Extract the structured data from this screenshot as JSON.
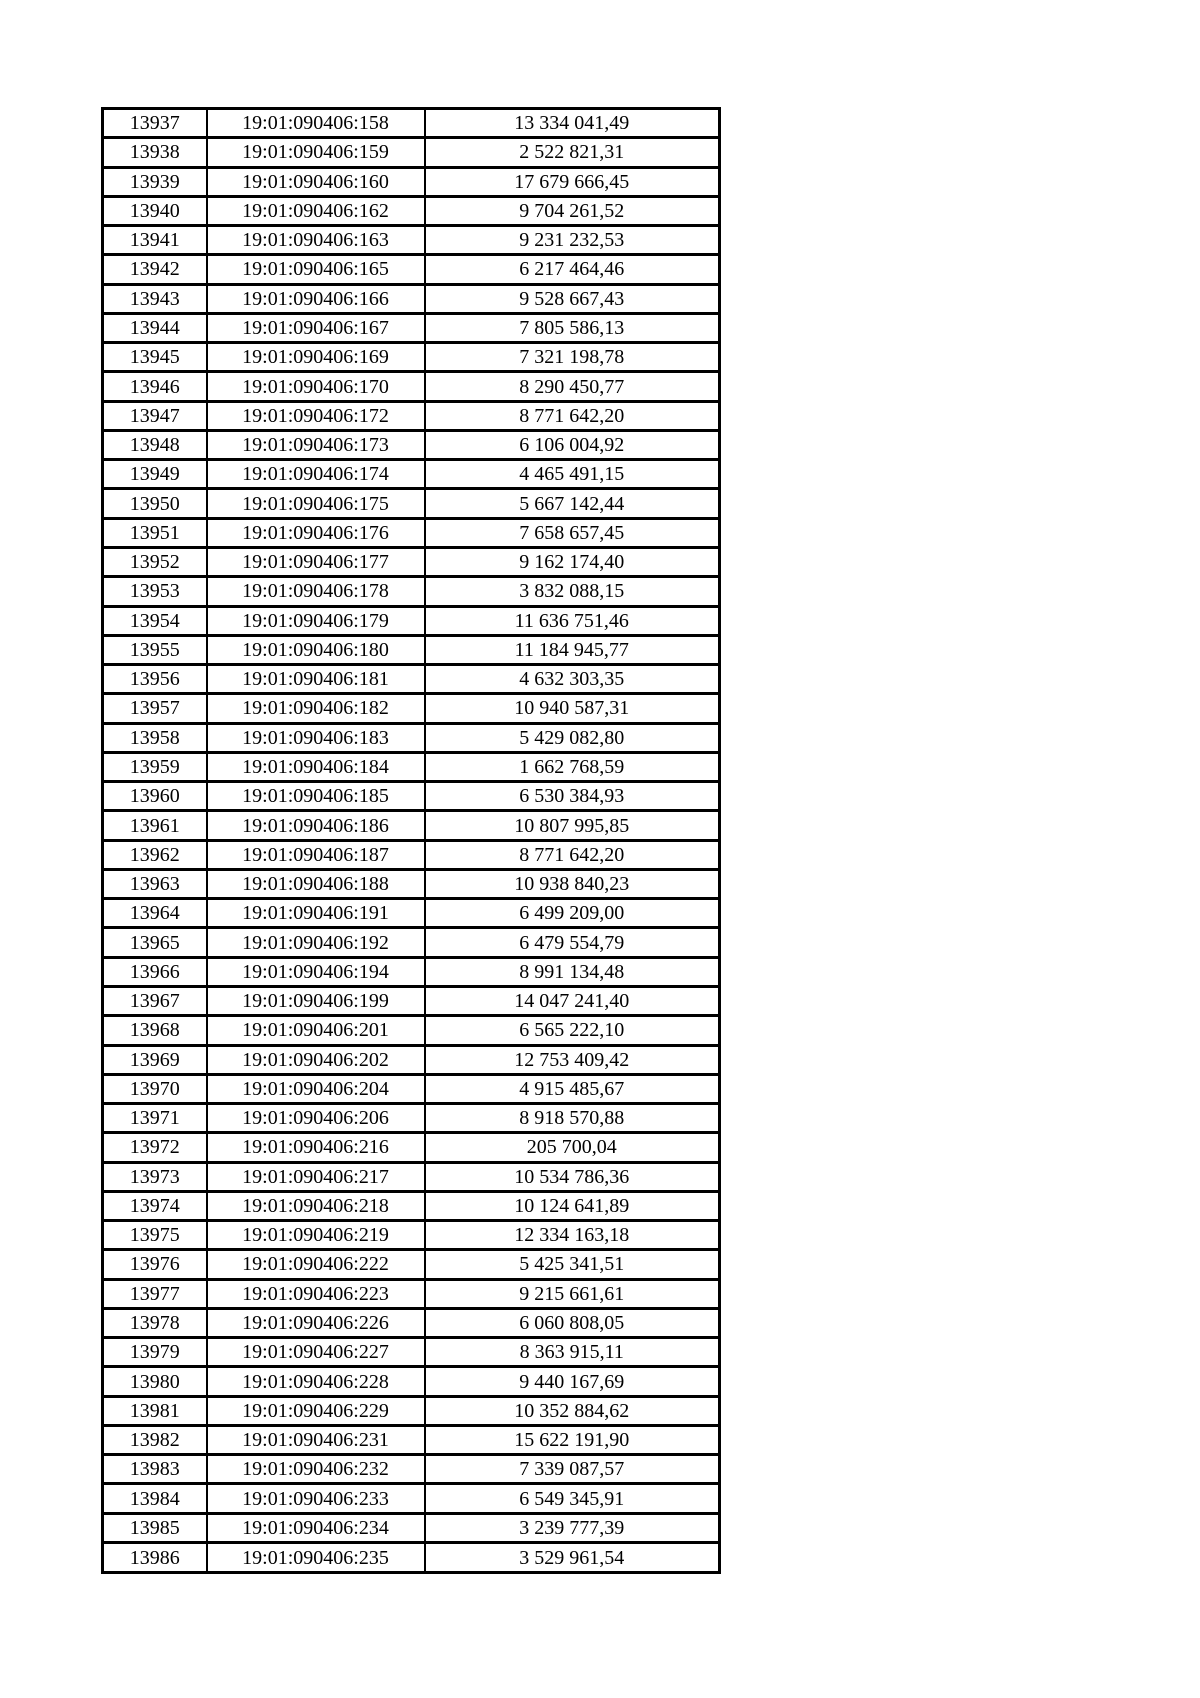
{
  "colors": {
    "background": "#ffffff",
    "text": "#000000",
    "border": "#000000"
  },
  "table": {
    "rows": [
      {
        "id": "13937",
        "time": "19:01:090406:158",
        "value": "13 334 041,49"
      },
      {
        "id": "13938",
        "time": "19:01:090406:159",
        "value": "2 522 821,31"
      },
      {
        "id": "13939",
        "time": "19:01:090406:160",
        "value": "17 679 666,45"
      },
      {
        "id": "13940",
        "time": "19:01:090406:162",
        "value": "9 704 261,52"
      },
      {
        "id": "13941",
        "time": "19:01:090406:163",
        "value": "9 231 232,53"
      },
      {
        "id": "13942",
        "time": "19:01:090406:165",
        "value": "6 217 464,46"
      },
      {
        "id": "13943",
        "time": "19:01:090406:166",
        "value": "9 528 667,43"
      },
      {
        "id": "13944",
        "time": "19:01:090406:167",
        "value": "7 805 586,13"
      },
      {
        "id": "13945",
        "time": "19:01:090406:169",
        "value": "7 321 198,78"
      },
      {
        "id": "13946",
        "time": "19:01:090406:170",
        "value": "8 290 450,77"
      },
      {
        "id": "13947",
        "time": "19:01:090406:172",
        "value": "8 771 642,20"
      },
      {
        "id": "13948",
        "time": "19:01:090406:173",
        "value": "6 106 004,92"
      },
      {
        "id": "13949",
        "time": "19:01:090406:174",
        "value": "4 465 491,15"
      },
      {
        "id": "13950",
        "time": "19:01:090406:175",
        "value": "5 667 142,44"
      },
      {
        "id": "13951",
        "time": "19:01:090406:176",
        "value": "7 658 657,45"
      },
      {
        "id": "13952",
        "time": "19:01:090406:177",
        "value": "9 162 174,40"
      },
      {
        "id": "13953",
        "time": "19:01:090406:178",
        "value": "3 832 088,15"
      },
      {
        "id": "13954",
        "time": "19:01:090406:179",
        "value": "11 636 751,46"
      },
      {
        "id": "13955",
        "time": "19:01:090406:180",
        "value": "11 184 945,77"
      },
      {
        "id": "13956",
        "time": "19:01:090406:181",
        "value": "4 632 303,35"
      },
      {
        "id": "13957",
        "time": "19:01:090406:182",
        "value": "10 940 587,31"
      },
      {
        "id": "13958",
        "time": "19:01:090406:183",
        "value": "5 429 082,80"
      },
      {
        "id": "13959",
        "time": "19:01:090406:184",
        "value": "1 662 768,59"
      },
      {
        "id": "13960",
        "time": "19:01:090406:185",
        "value": "6 530 384,93"
      },
      {
        "id": "13961",
        "time": "19:01:090406:186",
        "value": "10 807 995,85"
      },
      {
        "id": "13962",
        "time": "19:01:090406:187",
        "value": "8 771 642,20"
      },
      {
        "id": "13963",
        "time": "19:01:090406:188",
        "value": "10 938 840,23"
      },
      {
        "id": "13964",
        "time": "19:01:090406:191",
        "value": "6 499 209,00"
      },
      {
        "id": "13965",
        "time": "19:01:090406:192",
        "value": "6 479 554,79"
      },
      {
        "id": "13966",
        "time": "19:01:090406:194",
        "value": "8 991 134,48"
      },
      {
        "id": "13967",
        "time": "19:01:090406:199",
        "value": "14 047 241,40"
      },
      {
        "id": "13968",
        "time": "19:01:090406:201",
        "value": "6 565 222,10"
      },
      {
        "id": "13969",
        "time": "19:01:090406:202",
        "value": "12 753 409,42"
      },
      {
        "id": "13970",
        "time": "19:01:090406:204",
        "value": "4 915 485,67"
      },
      {
        "id": "13971",
        "time": "19:01:090406:206",
        "value": "8 918 570,88"
      },
      {
        "id": "13972",
        "time": "19:01:090406:216",
        "value": "205 700,04"
      },
      {
        "id": "13973",
        "time": "19:01:090406:217",
        "value": "10 534 786,36"
      },
      {
        "id": "13974",
        "time": "19:01:090406:218",
        "value": "10 124 641,89"
      },
      {
        "id": "13975",
        "time": "19:01:090406:219",
        "value": "12 334 163,18"
      },
      {
        "id": "13976",
        "time": "19:01:090406:222",
        "value": "5 425 341,51"
      },
      {
        "id": "13977",
        "time": "19:01:090406:223",
        "value": "9 215 661,61"
      },
      {
        "id": "13978",
        "time": "19:01:090406:226",
        "value": "6 060 808,05"
      },
      {
        "id": "13979",
        "time": "19:01:090406:227",
        "value": "8 363 915,11"
      },
      {
        "id": "13980",
        "time": "19:01:090406:228",
        "value": "9 440 167,69"
      },
      {
        "id": "13981",
        "time": "19:01:090406:229",
        "value": "10 352 884,62"
      },
      {
        "id": "13982",
        "time": "19:01:090406:231",
        "value": "15 622 191,90"
      },
      {
        "id": "13983",
        "time": "19:01:090406:232",
        "value": "7 339 087,57"
      },
      {
        "id": "13984",
        "time": "19:01:090406:233",
        "value": "6 549 345,91"
      },
      {
        "id": "13985",
        "time": "19:01:090406:234",
        "value": "3 239 777,39"
      },
      {
        "id": "13986",
        "time": "19:01:090406:235",
        "value": "3 529 961,54"
      }
    ]
  }
}
